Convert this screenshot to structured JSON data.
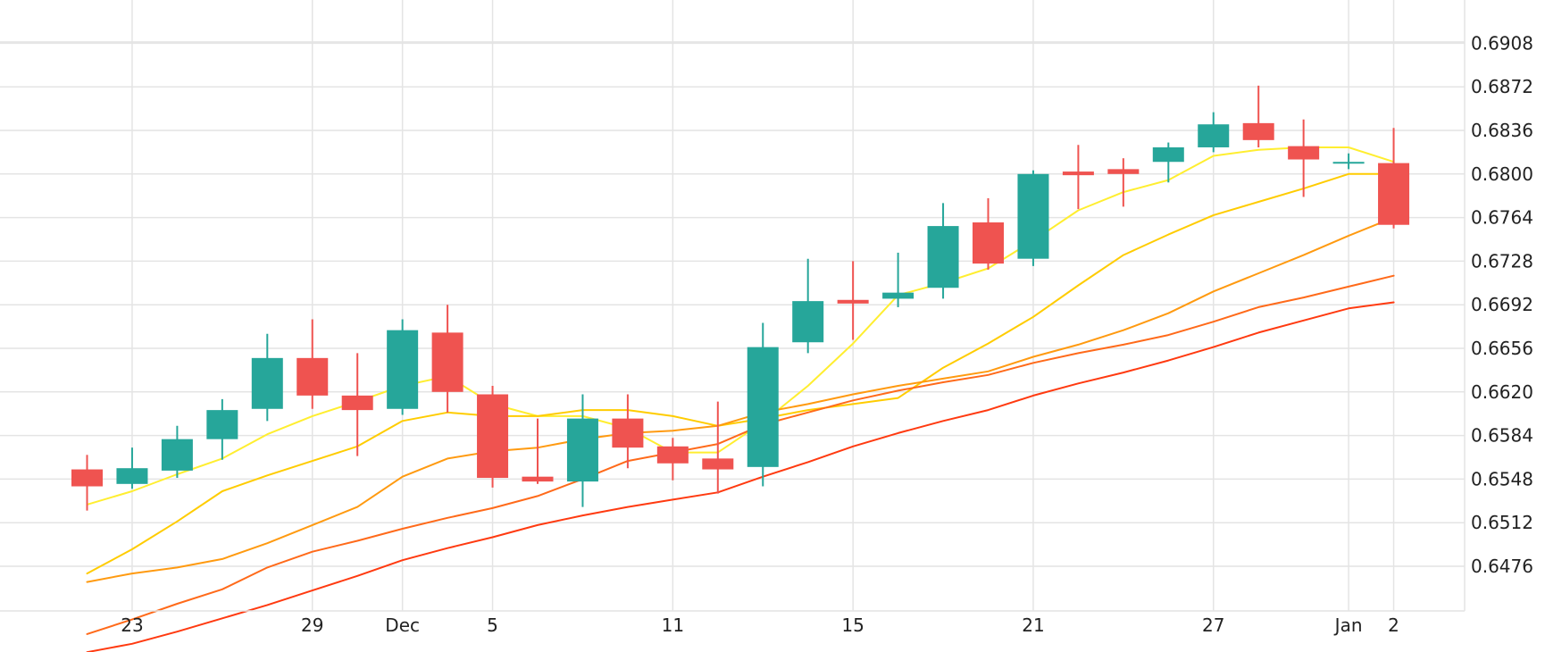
{
  "chart_data": {
    "type": "candlestick",
    "title": "",
    "xlabel": "",
    "ylabel": "",
    "grid": true,
    "ylim": [
      0.6425,
      0.6945
    ],
    "x_ticks": [
      {
        "label": "23",
        "day": 1
      },
      {
        "label": "29",
        "day": 5
      },
      {
        "label": "Dec",
        "day": 7
      },
      {
        "label": "5",
        "day": 9
      },
      {
        "label": "11",
        "day": 13
      },
      {
        "label": "15",
        "day": 17
      },
      {
        "label": "21",
        "day": 21
      },
      {
        "label": "27",
        "day": 25
      },
      {
        "label": "Jan",
        "day": 28
      },
      {
        "label": "2",
        "day": 29
      }
    ],
    "y_ticks": [
      "0.6476",
      "0.6512",
      "0.6548",
      "0.6584",
      "0.6620",
      "0.6656",
      "0.6692",
      "0.6728",
      "0.6764",
      "0.6800",
      "0.6836",
      "0.6872",
      "0.6908"
    ],
    "up_color": "#26a69a",
    "down_color": "#ef5350",
    "candles": [
      {
        "d": 0,
        "o": 0.6556,
        "h": 0.6568,
        "l": 0.6522,
        "c": 0.6542
      },
      {
        "d": 1,
        "o": 0.6544,
        "h": 0.6574,
        "l": 0.654,
        "c": 0.6557
      },
      {
        "d": 2,
        "o": 0.6555,
        "h": 0.6592,
        "l": 0.6549,
        "c": 0.6581
      },
      {
        "d": 3,
        "o": 0.6581,
        "h": 0.6614,
        "l": 0.6564,
        "c": 0.6605
      },
      {
        "d": 4,
        "o": 0.6606,
        "h": 0.6668,
        "l": 0.6596,
        "c": 0.6648
      },
      {
        "d": 5,
        "o": 0.6648,
        "h": 0.668,
        "l": 0.6606,
        "c": 0.6617
      },
      {
        "d": 6,
        "o": 0.6617,
        "h": 0.6652,
        "l": 0.6567,
        "c": 0.6605
      },
      {
        "d": 7,
        "o": 0.6606,
        "h": 0.668,
        "l": 0.6601,
        "c": 0.6671
      },
      {
        "d": 8,
        "o": 0.6669,
        "h": 0.6692,
        "l": 0.6603,
        "c": 0.662
      },
      {
        "d": 9,
        "o": 0.6618,
        "h": 0.6625,
        "l": 0.6541,
        "c": 0.6549
      },
      {
        "d": 10,
        "o": 0.655,
        "h": 0.6598,
        "l": 0.6544,
        "c": 0.6546
      },
      {
        "d": 11,
        "o": 0.6546,
        "h": 0.6618,
        "l": 0.6525,
        "c": 0.6598
      },
      {
        "d": 12,
        "o": 0.6598,
        "h": 0.6618,
        "l": 0.6557,
        "c": 0.6574
      },
      {
        "d": 13,
        "o": 0.6575,
        "h": 0.6582,
        "l": 0.6547,
        "c": 0.6561
      },
      {
        "d": 14,
        "o": 0.6565,
        "h": 0.6612,
        "l": 0.6536,
        "c": 0.6556
      },
      {
        "d": 15,
        "o": 0.6558,
        "h": 0.6677,
        "l": 0.6542,
        "c": 0.6657
      },
      {
        "d": 16,
        "o": 0.6661,
        "h": 0.673,
        "l": 0.6652,
        "c": 0.6695
      },
      {
        "d": 17,
        "o": 0.6696,
        "h": 0.6728,
        "l": 0.6663,
        "c": 0.6693
      },
      {
        "d": 18,
        "o": 0.6697,
        "h": 0.6735,
        "l": 0.669,
        "c": 0.6702
      },
      {
        "d": 19,
        "o": 0.6706,
        "h": 0.6776,
        "l": 0.6697,
        "c": 0.6757
      },
      {
        "d": 20,
        "o": 0.676,
        "h": 0.678,
        "l": 0.6721,
        "c": 0.6726
      },
      {
        "d": 21,
        "o": 0.673,
        "h": 0.6803,
        "l": 0.6724,
        "c": 0.68
      },
      {
        "d": 22,
        "o": 0.6802,
        "h": 0.6824,
        "l": 0.6771,
        "c": 0.6799
      },
      {
        "d": 23,
        "o": 0.6804,
        "h": 0.6813,
        "l": 0.6773,
        "c": 0.68
      },
      {
        "d": 24,
        "o": 0.681,
        "h": 0.6826,
        "l": 0.6793,
        "c": 0.6822
      },
      {
        "d": 25,
        "o": 0.6822,
        "h": 0.6851,
        "l": 0.6818,
        "c": 0.6841
      },
      {
        "d": 26,
        "o": 0.6842,
        "h": 0.6873,
        "l": 0.6822,
        "c": 0.6828
      },
      {
        "d": 27,
        "o": 0.6823,
        "h": 0.6845,
        "l": 0.6781,
        "c": 0.6812
      },
      {
        "d": 28,
        "o": 0.681,
        "h": 0.6817,
        "l": 0.6804,
        "c": 0.681
      },
      {
        "d": 29,
        "o": 0.6809,
        "h": 0.6838,
        "l": 0.6755,
        "c": 0.6758
      }
    ],
    "moving_averages": [
      {
        "color": "#ffee30",
        "values": [
          0.6527,
          0.6538,
          0.6552,
          0.6565,
          0.6585,
          0.66,
          0.6612,
          0.6625,
          0.6633,
          0.661,
          0.66,
          0.66,
          0.659,
          0.657,
          0.657,
          0.6595,
          0.6625,
          0.666,
          0.67,
          0.671,
          0.6722,
          0.6745,
          0.677,
          0.6785,
          0.6795,
          0.6815,
          0.682,
          0.6822,
          0.6822,
          0.681
        ]
      },
      {
        "color": "#ffcc00",
        "values": [
          0.647,
          0.649,
          0.6513,
          0.6538,
          0.6551,
          0.6563,
          0.6575,
          0.6596,
          0.6603,
          0.66,
          0.66,
          0.6605,
          0.6605,
          0.66,
          0.6592,
          0.6598,
          0.6605,
          0.661,
          0.6615,
          0.664,
          0.666,
          0.6682,
          0.6708,
          0.6733,
          0.675,
          0.6766,
          0.6777,
          0.6788,
          0.68,
          0.68
        ]
      },
      {
        "color": "#ff9a10",
        "values": [
          0.6463,
          0.647,
          0.6475,
          0.6482,
          0.6495,
          0.651,
          0.6525,
          0.655,
          0.6565,
          0.6571,
          0.6574,
          0.6581,
          0.6586,
          0.6588,
          0.6592,
          0.6603,
          0.661,
          0.6618,
          0.6625,
          0.6631,
          0.6637,
          0.6649,
          0.6659,
          0.6671,
          0.6685,
          0.6703,
          0.6718,
          0.6733,
          0.6749,
          0.6764
        ]
      },
      {
        "color": "#ff6a1a",
        "values": [
          0.642,
          0.6432,
          0.6445,
          0.6457,
          0.6475,
          0.6488,
          0.6497,
          0.6507,
          0.6516,
          0.6524,
          0.6534,
          0.6548,
          0.6563,
          0.657,
          0.6577,
          0.6593,
          0.6603,
          0.6613,
          0.6621,
          0.6628,
          0.6634,
          0.6644,
          0.6652,
          0.6659,
          0.6667,
          0.6678,
          0.669,
          0.6698,
          0.6707,
          0.6716
        ]
      },
      {
        "color": "#ff3a10",
        "values": [
          0.6405,
          0.6412,
          0.6422,
          0.6433,
          0.6444,
          0.6456,
          0.6468,
          0.6481,
          0.6491,
          0.65,
          0.651,
          0.6518,
          0.6525,
          0.6531,
          0.6537,
          0.655,
          0.6562,
          0.6575,
          0.6586,
          0.6596,
          0.6605,
          0.6617,
          0.6627,
          0.6636,
          0.6646,
          0.6657,
          0.6669,
          0.6679,
          0.6689,
          0.6694
        ]
      }
    ]
  }
}
